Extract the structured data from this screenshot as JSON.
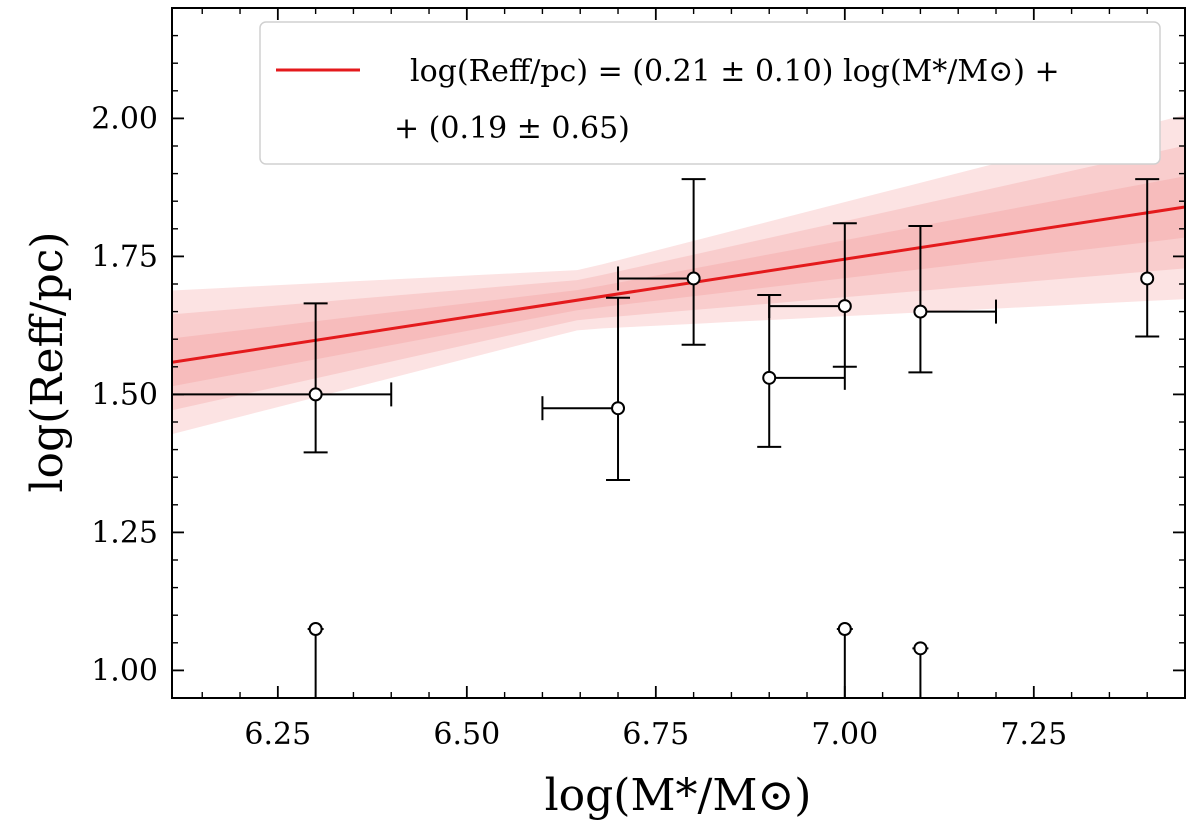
{
  "chart_data": {
    "type": "scatter",
    "title": "",
    "xlabel": "log(M*/M⊙)",
    "ylabel": "log(Reff/pc)",
    "xlim": [
      6.11,
      7.45
    ],
    "ylim": [
      0.95,
      2.2
    ],
    "xticks": [
      6.25,
      6.5,
      6.75,
      7.0,
      7.25
    ],
    "xtick_labels": [
      "6.25",
      "6.50",
      "6.75",
      "7.00",
      "7.25"
    ],
    "yticks": [
      1.0,
      1.25,
      1.5,
      1.75,
      2.0
    ],
    "ytick_labels": [
      "1.00",
      "1.25",
      "1.50",
      "1.75",
      "2.00"
    ],
    "grid": false,
    "legend": {
      "placement": "top-right",
      "line1": "log(Reff/pc) = (0.21 ± 0.10) log(M*/M⊙) +",
      "line2": "+ (0.19 ± 0.65)"
    },
    "fit": {
      "slope": 0.21,
      "intercept": 0.19,
      "color": "#e41a1c",
      "band_color": "#f08080"
    },
    "points": [
      {
        "x": 6.3,
        "y": 1.5,
        "xerr": [
          0.23,
          0.1
        ],
        "yerr": [
          0.105,
          0.165
        ]
      },
      {
        "x": 6.7,
        "y": 1.475,
        "xerr": [
          0.1,
          0.0
        ],
        "yerr": [
          0.13,
          0.2
        ]
      },
      {
        "x": 6.8,
        "y": 1.71,
        "xerr": [
          0.1,
          0.0
        ],
        "yerr": [
          0.12,
          0.18
        ]
      },
      {
        "x": 6.9,
        "y": 1.53,
        "xerr": [
          0.0,
          0.1
        ],
        "yerr": [
          0.125,
          0.15
        ]
      },
      {
        "x": 7.0,
        "y": 1.66,
        "xerr": [
          0.1,
          0.0
        ],
        "yerr": [
          0.11,
          0.15
        ]
      },
      {
        "x": 7.1,
        "y": 1.65,
        "xerr": [
          0.0,
          0.1
        ],
        "yerr": [
          0.11,
          0.155
        ]
      },
      {
        "x": 7.4,
        "y": 1.71,
        "xerr": [
          0.0,
          0.0
        ],
        "yerr": [
          0.105,
          0.18
        ]
      }
    ],
    "upper_limits": [
      {
        "x": 6.3,
        "y": 1.075
      },
      {
        "x": 7.0,
        "y": 1.075
      },
      {
        "x": 7.1,
        "y": 1.04
      }
    ]
  }
}
